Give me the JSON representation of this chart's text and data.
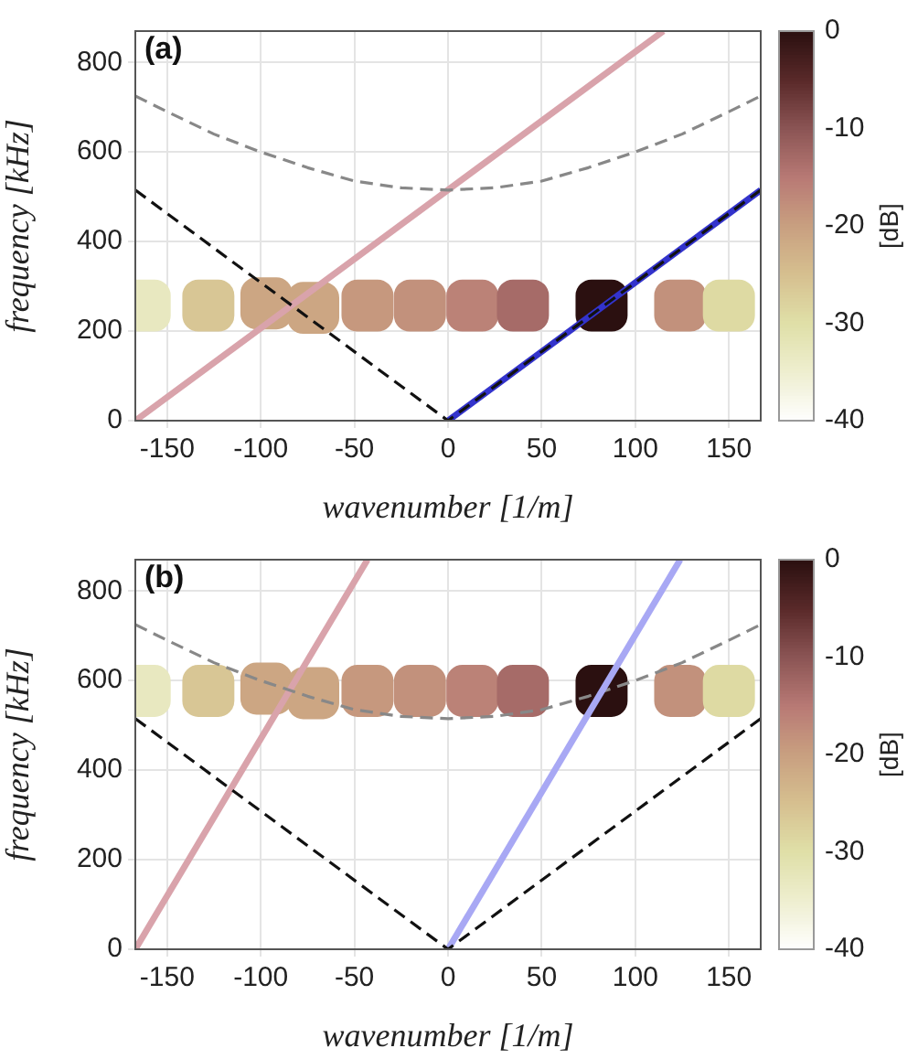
{
  "chart_data": [
    {
      "type": "line",
      "title": "(a)",
      "xlabel": "wavenumber [1/m]",
      "ylabel": "frequency [kHz]",
      "clabel": "[dB]",
      "clim": [
        -40,
        0
      ],
      "cticks": [
        0,
        -10,
        -20,
        -30,
        -40
      ],
      "xlim": [
        -167,
        167
      ],
      "ylim": [
        0,
        870
      ],
      "xticks": [
        -150,
        -100,
        -50,
        0,
        50,
        100,
        150
      ],
      "yticks": [
        0,
        200,
        400,
        600,
        800
      ],
      "grid": true,
      "legend": false,
      "series": [
        {
          "type": "scatter",
          "marker": "square",
          "x": [
            -162,
            -128,
            -97,
            -72,
            -43,
            -15,
            13,
            40,
            82,
            124,
            150
          ],
          "values": [
            257,
            257,
            262,
            252,
            257,
            257,
            257,
            257,
            257,
            257,
            257
          ],
          "cvalues": [
            -33,
            -26,
            -21,
            -21,
            -19,
            -18,
            -16,
            -13,
            0,
            -18,
            -29
          ],
          "colors": [
            "#e8e8c0",
            "#d8c695",
            "#cca683",
            "#cca683",
            "#c6987e",
            "#c2917c",
            "#bb8277",
            "#a66b68",
            "#2b1010",
            "#c2917c",
            "#dedaa3"
          ]
        },
        {
          "color": "#d9a3ab",
          "marker": "none",
          "line_style": "solid",
          "x": [
            -167,
            115
          ],
          "values": [
            0,
            870
          ]
        },
        {
          "color": "#888888",
          "marker": "none",
          "line_style": "dashed",
          "x": [
            -167,
            -150,
            -125,
            -100,
            -75,
            -50,
            -25,
            0,
            25,
            50,
            75,
            100,
            125,
            150,
            167
          ],
          "values": [
            725,
            690,
            640,
            600,
            565,
            535,
            520,
            515,
            520,
            535,
            565,
            600,
            640,
            690,
            725
          ]
        },
        {
          "color": "#3333cc",
          "marker": "none",
          "line_style": "solid",
          "x": [
            0,
            167
          ],
          "values": [
            0,
            515
          ]
        },
        {
          "color": "#111111",
          "marker": "none",
          "line_style": "dashed",
          "x": [
            -167,
            0,
            167
          ],
          "values": [
            515,
            0,
            515
          ]
        }
      ]
    },
    {
      "type": "line",
      "title": "(b)",
      "xlabel": "wavenumber [1/m]",
      "ylabel": "frequency [kHz]",
      "clabel": "[dB]",
      "clim": [
        -40,
        0
      ],
      "cticks": [
        0,
        -10,
        -20,
        -30,
        -40
      ],
      "xlim": [
        -167,
        167
      ],
      "ylim": [
        0,
        870
      ],
      "xticks": [
        -150,
        -100,
        -50,
        0,
        50,
        100,
        150
      ],
      "yticks": [
        0,
        200,
        400,
        600,
        800
      ],
      "grid": true,
      "legend": false,
      "series": [
        {
          "type": "scatter",
          "marker": "square",
          "x": [
            -162,
            -128,
            -97,
            -72,
            -43,
            -15,
            13,
            40,
            82,
            124,
            150
          ],
          "values": [
            577,
            577,
            582,
            572,
            577,
            577,
            577,
            577,
            577,
            577,
            577
          ],
          "cvalues": [
            -33,
            -26,
            -21,
            -21,
            -19,
            -18,
            -16,
            -13,
            0,
            -18,
            -29
          ],
          "colors": [
            "#e8e8c0",
            "#d8c695",
            "#cca683",
            "#cca683",
            "#c6987e",
            "#c2917c",
            "#bb8277",
            "#a66b68",
            "#2b1010",
            "#c2917c",
            "#dedaa3"
          ]
        },
        {
          "color": "#d9a3ab",
          "marker": "none",
          "line_style": "solid",
          "x": [
            -167,
            -43
          ],
          "values": [
            0,
            870
          ]
        },
        {
          "color": "#888888",
          "marker": "none",
          "line_style": "dashed",
          "x": [
            -167,
            -150,
            -125,
            -100,
            -75,
            -50,
            -25,
            0,
            25,
            50,
            75,
            100,
            125,
            150,
            167
          ],
          "values": [
            725,
            690,
            640,
            600,
            565,
            535,
            520,
            515,
            520,
            535,
            565,
            600,
            640,
            690,
            725
          ]
        },
        {
          "color": "#a8a8f4",
          "marker": "none",
          "line_style": "solid",
          "x": [
            0,
            124
          ],
          "values": [
            0,
            870
          ]
        },
        {
          "color": "#111111",
          "marker": "none",
          "line_style": "dashed",
          "x": [
            -167,
            0,
            167
          ],
          "values": [
            515,
            0,
            515
          ]
        }
      ]
    }
  ]
}
